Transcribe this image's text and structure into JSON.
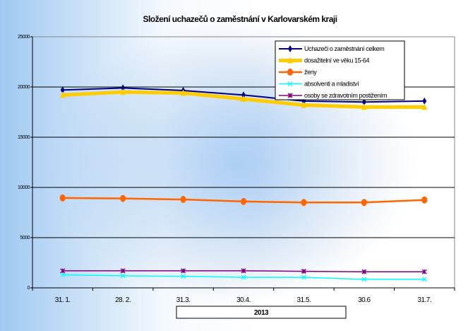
{
  "chart_data": {
    "type": "line",
    "title": "Složení uchazečů o zaměstnání v Karlovarském kraji",
    "xlabel": "2013",
    "ylabel": "",
    "ylim": [
      0,
      25000
    ],
    "yticks": [
      0,
      5000,
      10000,
      15000,
      20000,
      25000
    ],
    "ytick_labels": [
      "0",
      "5000",
      "10000",
      "15000",
      "20000",
      "25000"
    ],
    "categories": [
      "31. 1.",
      "28. 2.",
      "31.3.",
      "30.4.",
      "31.5.",
      "30.6",
      "31.7."
    ],
    "grid": true,
    "legend_position": "top-right",
    "series": [
      {
        "name": "Uchazeči o zaměstnání celkem",
        "color": "#000080",
        "marker": "diamond",
        "values": [
          19700,
          19900,
          19650,
          19200,
          18600,
          18500,
          18600
        ]
      },
      {
        "name": "dosažitelní ve věku 15-64",
        "color": "#ffcc00",
        "marker": "triangle",
        "values": [
          19200,
          19500,
          19400,
          18800,
          18200,
          18000,
          18000
        ]
      },
      {
        "name": "ženy",
        "color": "#ff6600",
        "marker": "circle",
        "values": [
          8950,
          8900,
          8800,
          8600,
          8500,
          8500,
          8750
        ]
      },
      {
        "name": "absolventi a mladiství",
        "color": "#00ffff",
        "marker": "x",
        "values": [
          1300,
          1200,
          1150,
          1050,
          1050,
          850,
          850
        ]
      },
      {
        "name": "osoby se zdravotním postižením",
        "color": "#800080",
        "marker": "star",
        "values": [
          1700,
          1700,
          1700,
          1700,
          1650,
          1600,
          1600
        ]
      }
    ]
  }
}
